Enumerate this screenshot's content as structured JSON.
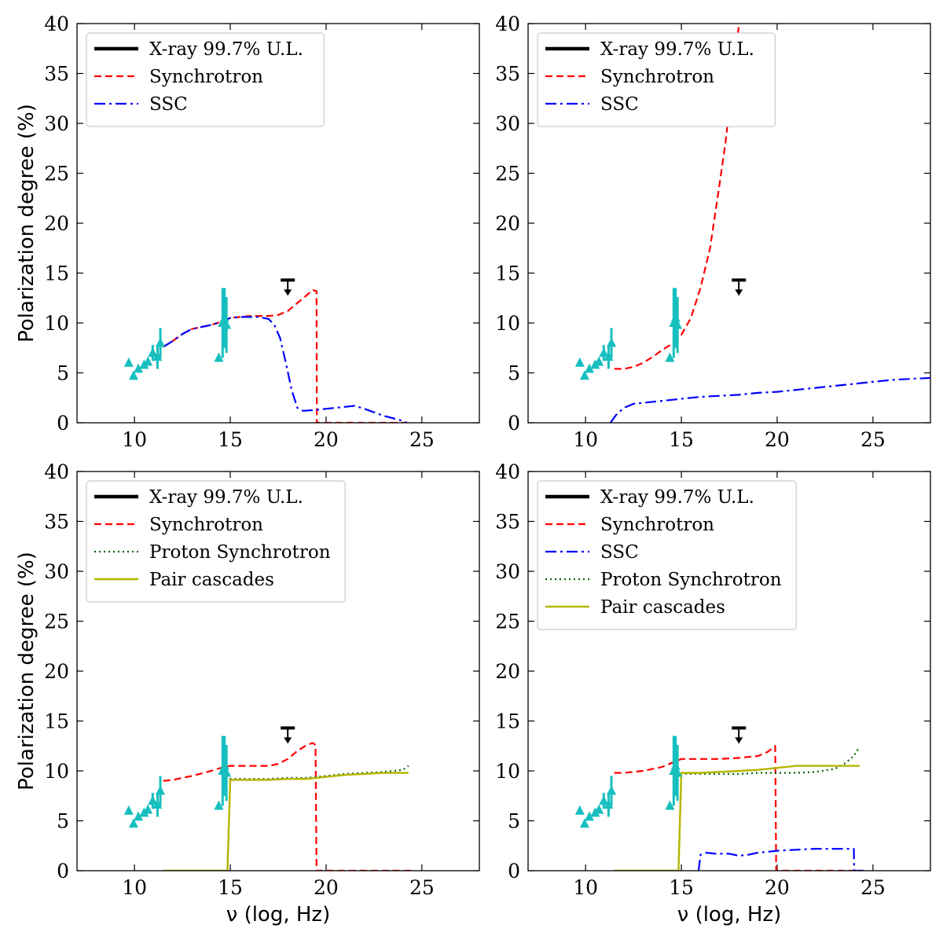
{
  "figure": {
    "ylabel": "Polarization degree (%)",
    "xlabel": "ν (log, Hz)"
  },
  "chart_data": [
    {
      "type": "line",
      "xlim": [
        7,
        28
      ],
      "ylim": [
        0,
        40
      ],
      "xticks": [
        10,
        15,
        20,
        25
      ],
      "yticks": [
        0,
        5,
        10,
        15,
        20,
        25,
        30,
        35,
        40
      ],
      "ylabel": "Polarization degree (%)",
      "xlabel": "",
      "legend_position": "top-left",
      "legend": [
        {
          "label": "X-ray 99.7% U.L.",
          "color": "#000000",
          "style": "solid-thick"
        },
        {
          "label": "Synchrotron",
          "color": "#ff0000",
          "style": "dashed"
        },
        {
          "label": "SSC",
          "color": "#0000ff",
          "style": "dashdot"
        }
      ],
      "upper_limit": {
        "x": 18,
        "y": 14.3,
        "color": "#000000"
      },
      "observed_points": {
        "color": "#17bfbf",
        "points": [
          [
            9.7,
            6.0,
            0
          ],
          [
            9.95,
            4.7,
            0
          ],
          [
            10.2,
            5.4,
            0
          ],
          [
            10.5,
            5.8,
            0
          ],
          [
            10.7,
            6.1,
            0
          ],
          [
            10.95,
            7.0,
            0.8
          ],
          [
            11.2,
            6.6,
            1.2
          ],
          [
            11.35,
            8.0,
            1.5
          ],
          [
            14.4,
            6.5,
            0
          ],
          [
            14.6,
            10.0,
            3.5
          ],
          [
            14.7,
            10.5,
            3.0
          ],
          [
            14.8,
            9.8,
            2.8
          ]
        ]
      },
      "series": [
        {
          "kind": "synchrotron",
          "color": "#ff0000",
          "dash": "9,5",
          "width": 2.2,
          "x": [
            11.5,
            12,
            12.5,
            13,
            13.5,
            14,
            14.5,
            15,
            15.5,
            16,
            16.5,
            17,
            17.5,
            18,
            18.5,
            19,
            19.3,
            19.5,
            19.52,
            20,
            22,
            24,
            24.5
          ],
          "y": [
            7.6,
            8.2,
            8.9,
            9.4,
            9.6,
            9.8,
            10.1,
            10.5,
            10.6,
            10.7,
            10.7,
            10.7,
            10.8,
            11.2,
            12.0,
            12.8,
            13.3,
            13.2,
            0,
            0,
            0,
            0,
            0
          ]
        },
        {
          "kind": "ssc",
          "color": "#0000ff",
          "dash": "14,5,3,5",
          "width": 2.2,
          "x": [
            11.5,
            12,
            12.5,
            13,
            13.5,
            14,
            14.5,
            15,
            15.5,
            16,
            16.5,
            17,
            17.3,
            17.6,
            17.9,
            18.2,
            18.5,
            18.8,
            19.5,
            20,
            21,
            21.5,
            22,
            23,
            24,
            24.2
          ],
          "y": [
            7.6,
            8.2,
            8.9,
            9.4,
            9.6,
            9.8,
            10.1,
            10.5,
            10.6,
            10.6,
            10.6,
            10.4,
            9.8,
            8.5,
            6.0,
            3.3,
            1.5,
            1.2,
            1.3,
            1.4,
            1.6,
            1.7,
            1.4,
            0.7,
            0.2,
            0
          ]
        }
      ]
    },
    {
      "type": "line",
      "xlim": [
        7,
        28
      ],
      "ylim": [
        0,
        40
      ],
      "xticks": [
        10,
        15,
        20,
        25
      ],
      "yticks": [
        0,
        5,
        10,
        15,
        20,
        25,
        30,
        35,
        40
      ],
      "ylabel": "",
      "xlabel": "",
      "legend_position": "top-left",
      "legend": [
        {
          "label": "X-ray 99.7% U.L.",
          "color": "#000000",
          "style": "solid-thick"
        },
        {
          "label": "Synchrotron",
          "color": "#ff0000",
          "style": "dashed"
        },
        {
          "label": "SSC",
          "color": "#0000ff",
          "style": "dashdot"
        }
      ],
      "upper_limit": {
        "x": 18,
        "y": 14.3,
        "color": "#000000"
      },
      "observed_points": {
        "color": "#17bfbf",
        "points": [
          [
            9.7,
            6.0,
            0
          ],
          [
            9.95,
            4.7,
            0
          ],
          [
            10.2,
            5.4,
            0
          ],
          [
            10.5,
            5.8,
            0
          ],
          [
            10.7,
            6.1,
            0
          ],
          [
            10.95,
            7.0,
            0.8
          ],
          [
            11.2,
            6.6,
            1.2
          ],
          [
            11.35,
            8.0,
            1.5
          ],
          [
            14.4,
            6.5,
            0
          ],
          [
            14.6,
            10.0,
            3.5
          ],
          [
            14.7,
            10.5,
            3.0
          ],
          [
            14.8,
            9.8,
            2.8
          ]
        ]
      },
      "series": [
        {
          "kind": "synchrotron",
          "color": "#ff0000",
          "dash": "9,5",
          "width": 2.2,
          "x": [
            11.5,
            12,
            12.5,
            13,
            13.5,
            14,
            14.5,
            15,
            15.5,
            16,
            16.5,
            17,
            17.3,
            17.6,
            17.8,
            18.0,
            18.1
          ],
          "y": [
            5.4,
            5.4,
            5.6,
            6.0,
            6.6,
            7.3,
            7.9,
            8.8,
            10.5,
            13.5,
            17.5,
            24.0,
            28.0,
            33.0,
            36.5,
            39.8,
            40.5
          ]
        },
        {
          "kind": "ssc",
          "color": "#0000ff",
          "dash": "14,5,3,5",
          "width": 2.2,
          "x": [
            11.3,
            11.6,
            12,
            12.5,
            13,
            14,
            15,
            16,
            17,
            18,
            19,
            20,
            21,
            22,
            23,
            24,
            25,
            26,
            27,
            28
          ],
          "y": [
            0,
            0.8,
            1.5,
            1.9,
            2.0,
            2.2,
            2.4,
            2.6,
            2.7,
            2.8,
            3.0,
            3.1,
            3.3,
            3.5,
            3.7,
            3.9,
            4.1,
            4.3,
            4.4,
            4.5
          ]
        }
      ]
    },
    {
      "type": "line",
      "xlim": [
        7,
        28
      ],
      "ylim": [
        0,
        40
      ],
      "xticks": [
        10,
        15,
        20,
        25
      ],
      "yticks": [
        0,
        5,
        10,
        15,
        20,
        25,
        30,
        35,
        40
      ],
      "ylabel": "Polarization degree (%)",
      "xlabel": "ν (log, Hz)",
      "legend_position": "top-left",
      "legend": [
        {
          "label": "X-ray 99.7% U.L.",
          "color": "#000000",
          "style": "solid-thick"
        },
        {
          "label": "Synchrotron",
          "color": "#ff0000",
          "style": "dashed"
        },
        {
          "label": "Proton Synchrotron",
          "color": "#006400",
          "style": "dotted"
        },
        {
          "label": "Pair cascades",
          "color": "#b5b500",
          "style": "solid"
        }
      ],
      "upper_limit": {
        "x": 18,
        "y": 14.3,
        "color": "#000000"
      },
      "observed_points": {
        "color": "#17bfbf",
        "points": [
          [
            9.7,
            6.0,
            0
          ],
          [
            9.95,
            4.7,
            0
          ],
          [
            10.2,
            5.4,
            0
          ],
          [
            10.5,
            5.8,
            0
          ],
          [
            10.7,
            6.1,
            0
          ],
          [
            10.95,
            7.0,
            0.8
          ],
          [
            11.2,
            6.6,
            1.2
          ],
          [
            11.35,
            8.0,
            1.5
          ],
          [
            14.4,
            6.5,
            0
          ],
          [
            14.6,
            10.0,
            3.5
          ],
          [
            14.7,
            10.5,
            3.0
          ],
          [
            14.8,
            9.8,
            2.8
          ]
        ]
      },
      "series": [
        {
          "kind": "synchrotron",
          "color": "#ff0000",
          "dash": "9,5",
          "width": 2.2,
          "x": [
            11.5,
            12,
            13,
            14,
            14.5,
            15,
            15.5,
            16,
            16.5,
            17,
            17.5,
            18,
            18.5,
            19,
            19.3,
            19.45,
            19.5,
            20,
            22,
            24,
            24.5
          ],
          "y": [
            9.0,
            9.1,
            9.5,
            10.0,
            10.3,
            10.5,
            10.5,
            10.5,
            10.5,
            10.5,
            10.7,
            11.2,
            12.0,
            12.6,
            12.8,
            12.6,
            0,
            0,
            0,
            0,
            0
          ]
        },
        {
          "kind": "proton",
          "color": "#006400",
          "dash": "2,4",
          "width": 2.2,
          "x": [
            11.5,
            13,
            14,
            14.85,
            15.0,
            16,
            17,
            18,
            19,
            20,
            21,
            22,
            23,
            24,
            24.3
          ],
          "y": [
            0,
            0,
            0,
            0,
            9.2,
            9.2,
            9.2,
            9.3,
            9.3,
            9.5,
            9.7,
            9.8,
            9.9,
            10.1,
            10.5
          ]
        },
        {
          "kind": "pair",
          "color": "#b5b500",
          "dash": "",
          "width": 2.4,
          "x": [
            11.5,
            13,
            14,
            14.85,
            15.0,
            16,
            17,
            18,
            19,
            20,
            21,
            22,
            23,
            24,
            24.3
          ],
          "y": [
            0,
            0,
            0,
            0,
            9.1,
            9.1,
            9.1,
            9.2,
            9.2,
            9.4,
            9.6,
            9.7,
            9.8,
            9.8,
            9.8
          ]
        }
      ]
    },
    {
      "type": "line",
      "xlim": [
        7,
        28
      ],
      "ylim": [
        0,
        40
      ],
      "xticks": [
        10,
        15,
        20,
        25
      ],
      "yticks": [
        0,
        5,
        10,
        15,
        20,
        25,
        30,
        35,
        40
      ],
      "ylabel": "",
      "xlabel": "ν (log, Hz)",
      "legend_position": "top-left",
      "legend": [
        {
          "label": "X-ray 99.7% U.L.",
          "color": "#000000",
          "style": "solid-thick"
        },
        {
          "label": "Synchrotron",
          "color": "#ff0000",
          "style": "dashed"
        },
        {
          "label": "SSC",
          "color": "#0000ff",
          "style": "dashdot"
        },
        {
          "label": "Proton Synchrotron",
          "color": "#006400",
          "style": "dotted"
        },
        {
          "label": "Pair cascades",
          "color": "#b5b500",
          "style": "solid"
        }
      ],
      "upper_limit": {
        "x": 18,
        "y": 14.3,
        "color": "#000000"
      },
      "observed_points": {
        "color": "#17bfbf",
        "points": [
          [
            9.7,
            6.0,
            0
          ],
          [
            9.95,
            4.7,
            0
          ],
          [
            10.2,
            5.4,
            0
          ],
          [
            10.5,
            5.8,
            0
          ],
          [
            10.7,
            6.1,
            0
          ],
          [
            10.95,
            7.0,
            0.8
          ],
          [
            11.2,
            6.6,
            1.2
          ],
          [
            11.35,
            8.0,
            1.5
          ],
          [
            14.4,
            6.5,
            0
          ],
          [
            14.6,
            10.0,
            3.5
          ],
          [
            14.7,
            10.5,
            3.0
          ],
          [
            14.8,
            9.8,
            2.8
          ]
        ]
      },
      "series": [
        {
          "kind": "synchrotron",
          "color": "#ff0000",
          "dash": "9,5",
          "width": 2.2,
          "x": [
            11.5,
            12,
            13,
            14,
            14.5,
            15,
            16,
            17,
            18,
            19,
            19.5,
            19.9,
            19.95,
            20,
            22,
            24,
            24.5
          ],
          "y": [
            9.8,
            9.8,
            10.0,
            10.4,
            10.8,
            11.2,
            11.2,
            11.2,
            11.3,
            11.5,
            11.9,
            12.5,
            0,
            0,
            0,
            0,
            0
          ]
        },
        {
          "kind": "ssc",
          "color": "#0000ff",
          "dash": "14,5,3,5",
          "width": 2.2,
          "x": [
            15.9,
            16.0,
            16.3,
            16.8,
            17.5,
            18,
            18.5,
            19,
            19.5,
            20,
            21,
            22,
            23,
            24,
            24.02,
            24.5
          ],
          "y": [
            0,
            1.6,
            1.8,
            1.7,
            1.7,
            1.5,
            1.6,
            1.8,
            1.9,
            2.0,
            2.1,
            2.2,
            2.2,
            2.2,
            0,
            0
          ]
        },
        {
          "kind": "proton",
          "color": "#006400",
          "dash": "2,4",
          "width": 2.2,
          "x": [
            11.5,
            13,
            14,
            14.85,
            15.0,
            16,
            17,
            18,
            19,
            20,
            21,
            22,
            23,
            23.5,
            24,
            24.3
          ],
          "y": [
            0,
            0,
            0,
            0,
            9.7,
            9.7,
            9.7,
            9.7,
            9.8,
            9.8,
            9.8,
            9.9,
            10.2,
            10.7,
            11.5,
            12.4
          ]
        },
        {
          "kind": "pair",
          "color": "#b5b500",
          "dash": "",
          "width": 2.4,
          "x": [
            11.5,
            13,
            14,
            14.85,
            15.0,
            16,
            17,
            18,
            19,
            20,
            21,
            22,
            23,
            24,
            24.3
          ],
          "y": [
            0,
            0,
            0,
            0,
            9.8,
            9.8,
            9.9,
            10.0,
            10.1,
            10.3,
            10.5,
            10.5,
            10.5,
            10.5,
            10.5
          ]
        }
      ]
    }
  ]
}
